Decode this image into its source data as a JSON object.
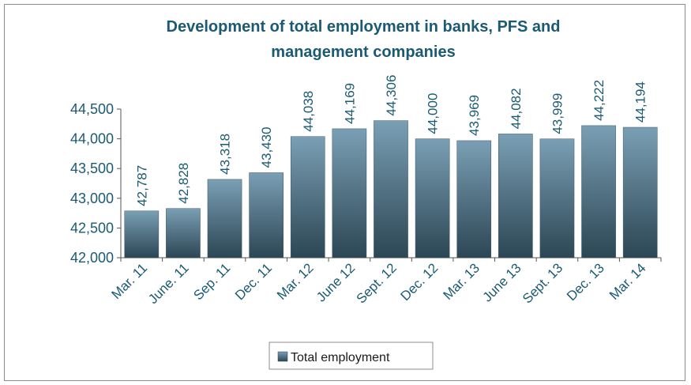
{
  "chart_data": {
    "type": "bar",
    "title_lines": [
      "Development of total employment in banks, PFS and",
      "management companies"
    ],
    "categories": [
      "Mar. 11",
      "June. 11",
      "Sep. 11",
      "Dec. 11",
      "Mar. 12",
      "June 12",
      "Sept. 12",
      "Dec. 12",
      "Mar. 13",
      "June 13",
      "Sept. 13",
      "Dec. 13",
      "Mar. 14"
    ],
    "series": [
      {
        "name": "Total employment",
        "values": [
          42787,
          42828,
          43318,
          43430,
          44038,
          44169,
          44306,
          44000,
          43969,
          44082,
          43999,
          44222,
          44194
        ],
        "labels": [
          "42,787",
          "42,828",
          "43,318",
          "43,430",
          "44,038",
          "44,169",
          "44,306",
          "44,000",
          "43,969",
          "44,082",
          "43,999",
          "44,222",
          "44,194"
        ]
      }
    ],
    "ylim": [
      42000,
      44500
    ],
    "yticks": [
      42000,
      42500,
      43000,
      43500,
      44000,
      44500
    ],
    "ytick_labels": [
      "42,000",
      "42,500",
      "43,000",
      "43,500",
      "44,000",
      "44,500"
    ],
    "grid": false,
    "legend_position": "bottom-center",
    "colors": {
      "bar_top": "#7a9fb4",
      "bar_bottom": "#2c4654",
      "text": "#1b5a73"
    }
  }
}
